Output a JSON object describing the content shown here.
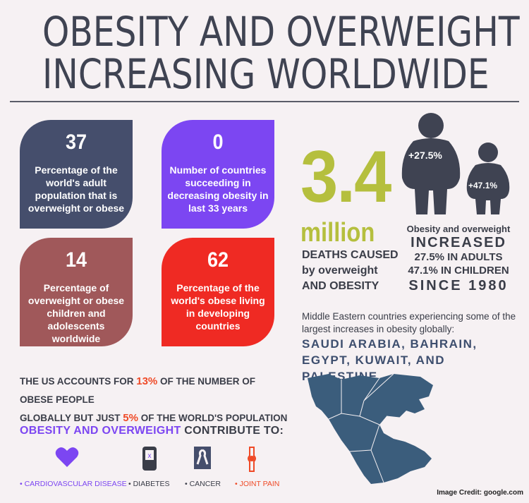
{
  "title": {
    "line1": "OBESITY AND OVERWEIGHT",
    "line2": "INCREASING WORLDWIDE"
  },
  "cards": [
    {
      "value": "37",
      "description": "Percentage of the world's adult population that is overweight or obese",
      "color": "#454e6c"
    },
    {
      "value": "0",
      "description": "Number of countries succeeding in decreasing obesity in last 33 years",
      "color": "#7c46f2"
    },
    {
      "value": "14",
      "description": "Percentage of overweight or obese children and adolescents worldwide",
      "color": "#a0585a"
    },
    {
      "value": "62",
      "description": "Percentage of the world's obese living in developing countries",
      "color": "#ef2a23"
    }
  ],
  "deaths": {
    "number": "3.4",
    "unit": "million",
    "line1": "DEATHS CAUSED",
    "line2": "by overweight",
    "line3": "AND OBESITY"
  },
  "figures": {
    "adult_label": "+27.5%",
    "child_label": "+47.1%"
  },
  "increase": {
    "line1": "Obesity and overweight",
    "line2": "INCREASED",
    "line3": "27.5% IN ADULTS",
    "line4": "47.1% IN CHILDREN",
    "line5": "SINCE 1980"
  },
  "middle_east": {
    "intro": "Middle Eastern countries experiencing some of the largest increases in obesity globally:",
    "countries": "SAUDI ARABIA, BAHRAIN, EGYPT, KUWAIT, AND PALESTINE"
  },
  "us_stat": {
    "part1": "THE US ACCOUNTS FOR ",
    "pct1": "13%",
    "part2": " OF THE NUMBER OF OBESE PEOPLE",
    "part3": "GLOBALLY BUT JUST ",
    "pct2": "5%",
    "part4": " OF THE WORLD'S POPULATION"
  },
  "contribute": {
    "highlight": "OBESITY AND OVERWEIGHT",
    "rest": " CONTRIBUTE TO:"
  },
  "conditions": [
    {
      "label": "• CARDIOVASCULAR DISEASE",
      "icon": "heart-icon",
      "color": "#7c46f2"
    },
    {
      "label": "• DIABETES",
      "icon": "glucose-meter-icon",
      "color": "#3a3d48"
    },
    {
      "label": "• CANCER",
      "icon": "ribbon-icon",
      "color": "#454e6c"
    },
    {
      "label": "• JOINT PAIN",
      "icon": "knee-joint-icon",
      "color": "#ef4a27"
    }
  ],
  "credit": "Image Credit: google.com",
  "colors": {
    "background": "#f6f1f3",
    "accent_green": "#b5bf3e",
    "accent_purple": "#7c46f2",
    "accent_red": "#ef2a23",
    "map_blue": "#3b5d7c",
    "figure_dark": "#3f4352"
  }
}
